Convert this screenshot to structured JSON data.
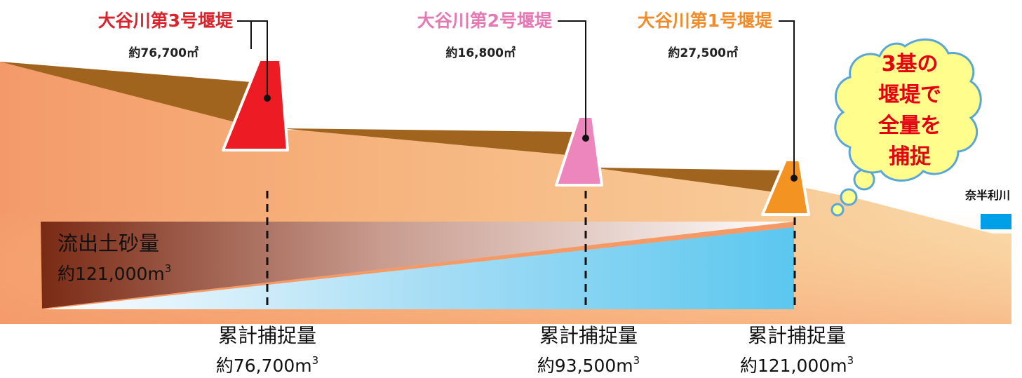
{
  "dams": [
    {
      "name": "大谷川第3号堰堤",
      "volume": "約76,700㎡",
      "color": "#d9232d",
      "body_color": "#ed1c24"
    },
    {
      "name": "大谷川第2号堰堤",
      "volume": "約16,800㎡",
      "color": "#e579b3",
      "body_color": "#ee86be"
    },
    {
      "name": "大谷川第1号堰堤",
      "volume": "約27,500㎡",
      "color": "#f08c2a",
      "body_color": "#f39322"
    }
  ],
  "outflow": {
    "label": "流出土砂量",
    "value": "約121,000",
    "unit": "m",
    "exp": "3"
  },
  "cumulative": [
    {
      "label": "累計捕捉量",
      "value": "約76,700",
      "unit": "m",
      "exp": "3"
    },
    {
      "label": "累計捕捉量",
      "value": "約93,500",
      "unit": "m",
      "exp": "3"
    },
    {
      "label": "累計捕捉量",
      "value": "約121,000",
      "unit": "m",
      "exp": "3"
    }
  ],
  "bubble": {
    "lines": [
      "3基の",
      "堰堤で",
      "全量を",
      "捕捉"
    ]
  },
  "river": {
    "name": "奈半利川",
    "color": "#00a0e9"
  },
  "colors": {
    "ground": "#f7c27e",
    "sediment": "#a0641e",
    "captured": "#5bc7ef",
    "outflow": "#7a2a14"
  }
}
